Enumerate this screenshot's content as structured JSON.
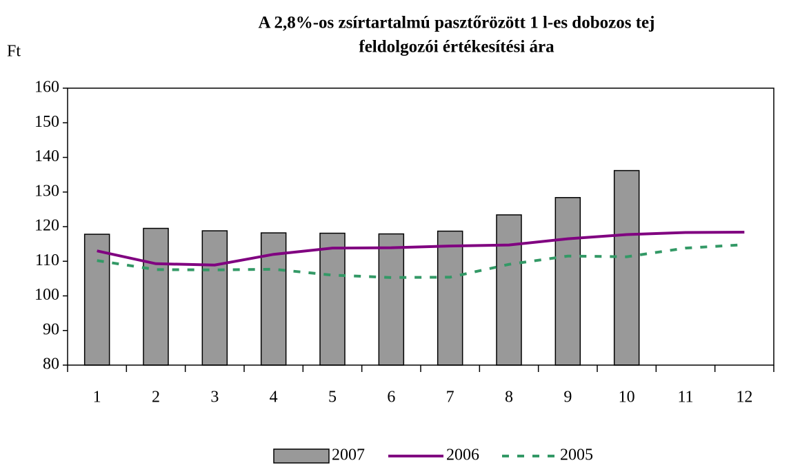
{
  "chart_data": {
    "type": "bar-line",
    "title": "A 2,8%-os zsírtartalmú pasztőrözött 1 l-es dobozos tej",
    "subtitle": "feldolgozói értékesítési ára",
    "y_label": "Ft",
    "categories": [
      "1",
      "2",
      "3",
      "4",
      "5",
      "6",
      "7",
      "8",
      "9",
      "10",
      "11",
      "12"
    ],
    "series": [
      {
        "name": "2007",
        "type": "bar",
        "color": "#999999",
        "values": [
          117.8,
          119.5,
          118.8,
          118.2,
          118.1,
          117.9,
          118.7,
          123.4,
          128.4,
          136.2,
          null,
          null
        ]
      },
      {
        "name": "2006",
        "type": "line",
        "color": "#800080",
        "values": [
          113,
          109.3,
          108.9,
          112,
          113.8,
          113.9,
          114.4,
          114.7,
          116.5,
          117.7,
          118.3,
          118.4
        ]
      },
      {
        "name": "2005",
        "type": "line",
        "color": "#339966",
        "dashed": true,
        "values": [
          110.2,
          107.6,
          107.5,
          107.7,
          106,
          105.3,
          105.4,
          109.1,
          111.5,
          111.3,
          113.8,
          114.8
        ]
      }
    ],
    "ylim": [
      80,
      160
    ],
    "yticks": [
      80,
      90,
      100,
      110,
      120,
      130,
      140,
      150,
      160
    ],
    "legend": "bottom"
  }
}
